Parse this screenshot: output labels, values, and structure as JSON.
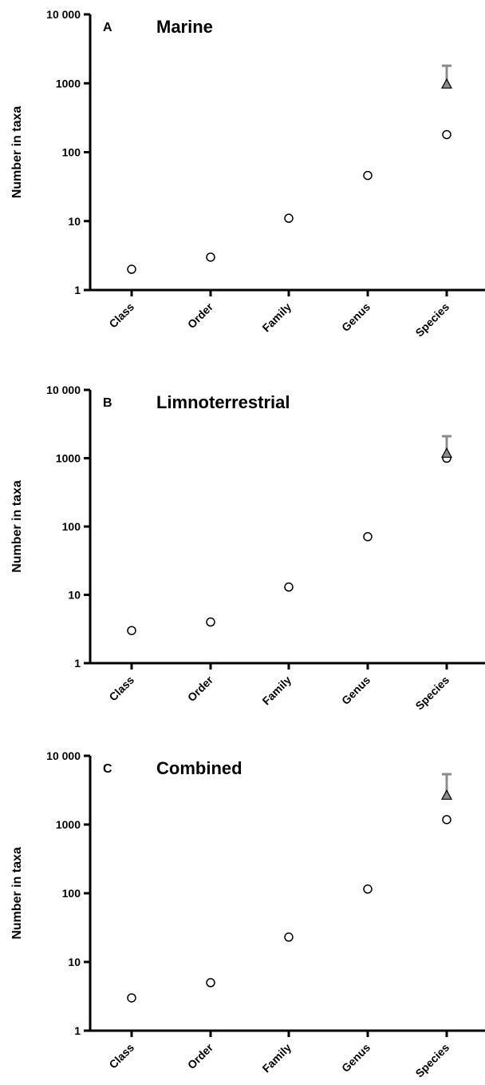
{
  "chart_data": [
    {
      "type": "scatter",
      "panel": "A",
      "title": "Marine",
      "ylabel": "Number in taxa",
      "yscale": "log",
      "ylim": [
        1,
        10000
      ],
      "yticks": [
        "1",
        "10",
        "100",
        "1000",
        "10 000"
      ],
      "categories": [
        "Class",
        "Order",
        "Family",
        "Genus",
        "Species"
      ],
      "series": [
        {
          "marker": "open-circle",
          "values": [
            2,
            3,
            11,
            46,
            180
          ]
        },
        {
          "marker": "filled-triangle",
          "values": [
            null,
            null,
            null,
            null,
            950
          ],
          "error_upper": [
            null,
            null,
            null,
            null,
            1800
          ]
        }
      ]
    },
    {
      "type": "scatter",
      "panel": "B",
      "title": "Limnoterrestrial",
      "ylabel": "Number in taxa",
      "yscale": "log",
      "ylim": [
        1,
        10000
      ],
      "yticks": [
        "1",
        "10",
        "100",
        "1000",
        "10 000"
      ],
      "categories": [
        "Class",
        "Order",
        "Family",
        "Genus",
        "Species"
      ],
      "series": [
        {
          "marker": "open-circle",
          "values": [
            3,
            4,
            13,
            71,
            1000
          ]
        },
        {
          "marker": "filled-triangle",
          "values": [
            null,
            null,
            null,
            null,
            1150
          ],
          "error_upper": [
            null,
            null,
            null,
            null,
            2100
          ]
        }
      ]
    },
    {
      "type": "scatter",
      "panel": "C",
      "title": "Combined",
      "ylabel": "Number in taxa",
      "yscale": "log",
      "ylim": [
        1,
        10000
      ],
      "yticks": [
        "1",
        "10",
        "100",
        "1000",
        "10 000"
      ],
      "categories": [
        "Class",
        "Order",
        "Family",
        "Genus",
        "Species"
      ],
      "series": [
        {
          "marker": "open-circle",
          "values": [
            3,
            5,
            23,
            115,
            1180
          ]
        },
        {
          "marker": "filled-triangle",
          "values": [
            null,
            null,
            null,
            null,
            2600
          ],
          "error_upper": [
            null,
            null,
            null,
            null,
            5400
          ]
        }
      ]
    }
  ],
  "colors": {
    "axis": "#000000",
    "circle_stroke": "#000000",
    "triangle_fill": "#8c8c8c",
    "error_bar": "#8c8c8c"
  }
}
